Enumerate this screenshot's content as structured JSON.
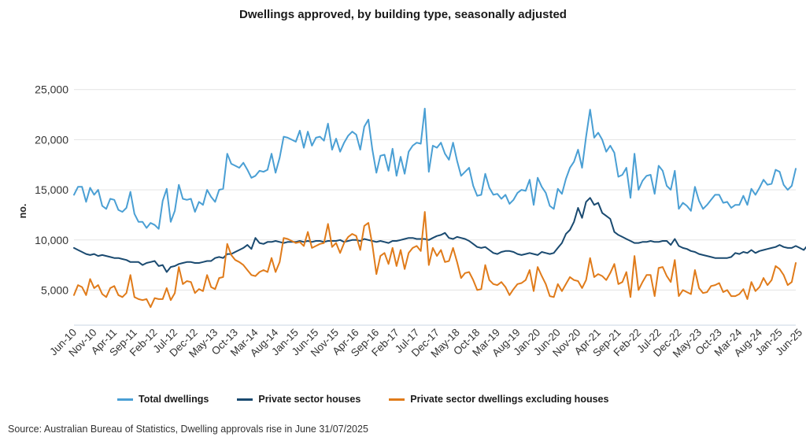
{
  "chart_data": {
    "type": "line",
    "title": "Dwellings approved, by building type, seasonally adjusted",
    "ylabel": "no.",
    "xlabel": "",
    "ylim": [
      1500,
      26000
    ],
    "y_ticks": [
      5000,
      10000,
      15000,
      20000,
      25000
    ],
    "y_tick_labels": [
      "5,000",
      "10,000",
      "15,000",
      "20,000",
      "25,000"
    ],
    "x_start": "Jun-10",
    "x_ticks": [
      "Jun-10",
      "Nov-10",
      "Apr-11",
      "Sep-11",
      "Feb-12",
      "Jul-12",
      "Dec-12",
      "May-13",
      "Oct-13",
      "Mar-14",
      "Aug-14",
      "Jan-15",
      "Jun-15",
      "Nov-15",
      "Apr-16",
      "Sep-16",
      "Feb-17",
      "Jul-17",
      "Dec-17",
      "May-18",
      "Oct-18",
      "Mar-19",
      "Aug-19",
      "Jan-20",
      "Jun-20",
      "Nov-20",
      "Apr-21",
      "Sep-21",
      "Feb-22",
      "Jul-22",
      "Dec-22",
      "May-23",
      "Oct-23",
      "Mar-24",
      "Aug-24",
      "Jan-25",
      "Jun-25"
    ],
    "grid": "horizontal",
    "legend_position": "bottom",
    "series": [
      {
        "name": "Total dwellings",
        "color": "#4a9fd4",
        "values": [
          14500,
          15300,
          15300,
          13800,
          15200,
          14500,
          15000,
          13400,
          13100,
          14100,
          14000,
          13000,
          12800,
          13200,
          14800,
          12600,
          11800,
          11800,
          11200,
          11700,
          11500,
          11100,
          13900,
          15100,
          11800,
          12900,
          15500,
          14100,
          14000,
          14100,
          12800,
          13800,
          13500,
          15000,
          14300,
          13800,
          15000,
          15100,
          18600,
          17600,
          17400,
          17200,
          17700,
          17000,
          16200,
          16400,
          16900,
          16800,
          17000,
          18600,
          16700,
          18200,
          20300,
          20200,
          20000,
          19800,
          20900,
          19200,
          20800,
          19400,
          20200,
          20300,
          19900,
          21600,
          19000,
          20100,
          18800,
          19700,
          20400,
          20800,
          20500,
          19000,
          21300,
          22000,
          19000,
          16700,
          18400,
          18500,
          16900,
          19100,
          16400,
          18300,
          16600,
          18800,
          19400,
          19700,
          19600,
          23100,
          16800,
          19400,
          19200,
          19700,
          18600,
          18000,
          19700,
          17900,
          16400,
          16800,
          17200,
          15400,
          14400,
          14500,
          16600,
          15200,
          14500,
          14600,
          14100,
          14500,
          13600,
          14000,
          14700,
          15000,
          14900,
          16000,
          13500,
          16200,
          15300,
          14700,
          13400,
          13100,
          15100,
          14600,
          16100,
          17200,
          17800,
          19000,
          17200,
          20300,
          23000,
          20200,
          20700,
          20000,
          18800,
          19400,
          18700,
          16300,
          16500,
          17200,
          14200,
          18600,
          15000,
          15900,
          16400,
          16500,
          14600,
          17400,
          16900,
          15400,
          15000,
          16900,
          13100,
          13700,
          13400,
          12900,
          15300,
          13900,
          13100,
          13500,
          14000,
          14500,
          14500,
          13700,
          13800,
          13200,
          13500,
          13500,
          14400,
          13500,
          15100,
          14500,
          15200,
          16000,
          15500,
          15600,
          17000,
          16800,
          15500,
          15000,
          15400,
          17100
        ]
      },
      {
        "name": "Private sector houses",
        "color": "#1a4a70",
        "values": [
          9200,
          9000,
          8800,
          8600,
          8500,
          8600,
          8400,
          8500,
          8400,
          8300,
          8200,
          8200,
          8100,
          8000,
          7800,
          7800,
          7800,
          7500,
          7700,
          7800,
          7900,
          7400,
          7500,
          6800,
          7300,
          7400,
          7600,
          7700,
          7800,
          7800,
          7700,
          7700,
          7800,
          7900,
          7900,
          8200,
          8300,
          8200,
          8600,
          8600,
          8800,
          9000,
          9200,
          9500,
          9100,
          10200,
          9700,
          9600,
          9800,
          9800,
          9900,
          9800,
          9700,
          9800,
          9800,
          9800,
          9900,
          9800,
          9900,
          9800,
          9900,
          9900,
          9800,
          9900,
          9900,
          9900,
          10000,
          9800,
          9900,
          10000,
          10000,
          9900,
          10100,
          10000,
          9900,
          9800,
          9900,
          9800,
          9700,
          9900,
          9900,
          10000,
          10100,
          10200,
          10200,
          10100,
          10100,
          10100,
          10000,
          10200,
          10400,
          10500,
          10700,
          10200,
          10100,
          10300,
          10200,
          10100,
          9900,
          9600,
          9300,
          9200,
          9300,
          9000,
          8700,
          8600,
          8800,
          8900,
          8900,
          8800,
          8600,
          8500,
          8600,
          8700,
          8600,
          8500,
          8800,
          8700,
          8600,
          8700,
          9200,
          9700,
          10600,
          11000,
          11800,
          13200,
          12200,
          13800,
          14200,
          13500,
          13700,
          12700,
          12400,
          12100,
          10800,
          10500,
          10300,
          10100,
          9900,
          9700,
          9700,
          9800,
          9800,
          9900,
          9800,
          9800,
          9900,
          9900,
          9500,
          10100,
          9400,
          9200,
          9100,
          8900,
          8800,
          8600,
          8500,
          8400,
          8300,
          8200,
          8200,
          8200,
          8200,
          8300,
          8700,
          8600,
          8800,
          8700,
          9000,
          8700,
          8900,
          9000,
          9100,
          9200,
          9300,
          9500,
          9300,
          9200,
          9200,
          9400,
          9200,
          9000,
          9500,
          9300,
          9200
        ]
      },
      {
        "name": "Private sector dwellings excluding houses",
        "color": "#e07b1a",
        "values": [
          4500,
          5500,
          5300,
          4500,
          6100,
          5200,
          5500,
          4600,
          4300,
          5200,
          5400,
          4500,
          4300,
          4700,
          6500,
          4300,
          4100,
          4000,
          4100,
          3300,
          4200,
          4100,
          4100,
          5200,
          4000,
          4700,
          7300,
          5600,
          5900,
          5800,
          4700,
          5100,
          4900,
          6500,
          5300,
          5100,
          6200,
          6300,
          9600,
          8500,
          8000,
          7800,
          7500,
          7000,
          6500,
          6400,
          6800,
          7000,
          6800,
          8200,
          6800,
          7800,
          10200,
          10100,
          9900,
          9700,
          9800,
          9400,
          10800,
          9200,
          9400,
          9600,
          9700,
          11600,
          9300,
          9700,
          8700,
          9700,
          10300,
          10600,
          10400,
          9000,
          11400,
          11700,
          9500,
          6600,
          8400,
          8700,
          7600,
          9200,
          7400,
          9000,
          7100,
          8700,
          9200,
          9400,
          8900,
          12800,
          7500,
          9200,
          8400,
          9000,
          7800,
          7900,
          9200,
          7800,
          6200,
          6700,
          6800,
          6000,
          5000,
          5100,
          7500,
          6000,
          5600,
          5500,
          5800,
          5300,
          4500,
          5100,
          5600,
          5700,
          6000,
          7000,
          4900,
          7300,
          6400,
          5600,
          4400,
          4300,
          5600,
          4900,
          5600,
          6300,
          6000,
          5900,
          5200,
          6000,
          8200,
          6300,
          6600,
          6400,
          6000,
          6700,
          7600,
          5600,
          5800,
          6800,
          4300,
          8400,
          5000,
          5800,
          6500,
          6500,
          4400,
          7200,
          7300,
          6400,
          5800,
          8000,
          4400,
          5000,
          4800,
          4600,
          7000,
          5200,
          4700,
          4800,
          5400,
          5500,
          5700,
          4800,
          5000,
          4400,
          4400,
          4600,
          5100,
          4100,
          5800,
          4900,
          5300,
          6200,
          5500,
          6000,
          7400,
          7100,
          6500,
          5500,
          5800,
          7700
        ]
      }
    ]
  },
  "source": "Source: Australian Bureau of Statistics, Dwelling approvals rise in June 31/07/2025"
}
